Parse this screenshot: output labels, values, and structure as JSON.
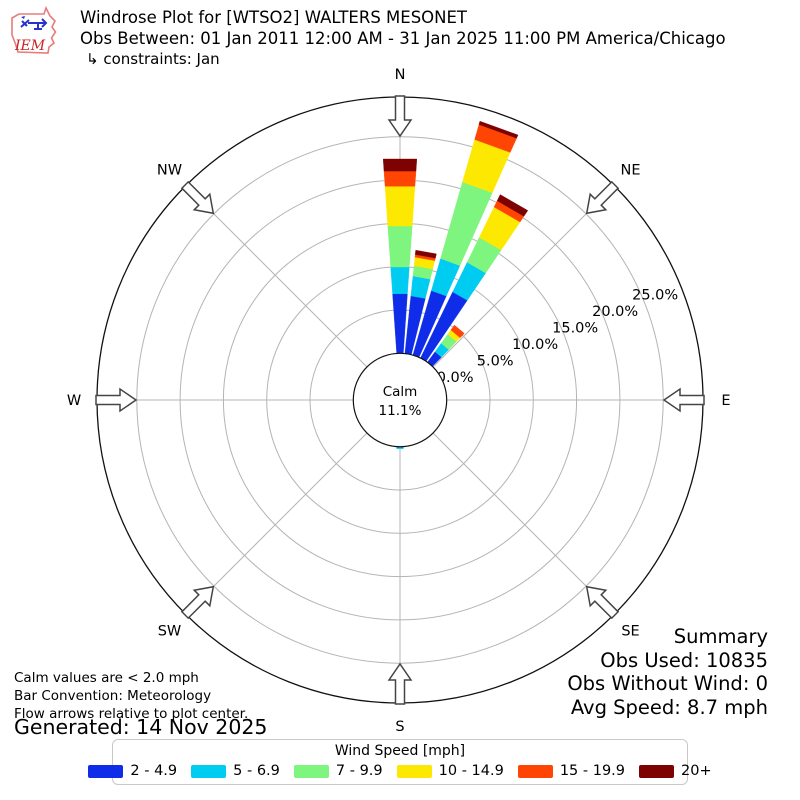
{
  "header": {
    "logo_text": "IEM",
    "title": "Windrose Plot for [WTSO2] WALTERS MESONET",
    "subtitle": "Obs Between: 01 Jan 2011 12:00 AM - 31 Jan 2025 11:00 PM America/Chicago",
    "constraints": "↳ constraints: Jan"
  },
  "notes": {
    "lines": [
      "Calm values are < 2.0 mph",
      "Bar Convention: Meteorology",
      "Flow arrows relative to plot center."
    ],
    "generated": "Generated: 14 Nov 2025"
  },
  "summary": {
    "title": "Summary",
    "obs_used": "Obs Used: 10835",
    "obs_without_wind": "Obs Without Wind: 0",
    "avg_speed": "Avg Speed: 8.7 mph"
  },
  "legend": {
    "title": "Wind Speed [mph]"
  },
  "chart_data": {
    "type": "windrose",
    "units": "mph",
    "sector_width_deg": 10,
    "petal_opening_deg": 8,
    "rings_pct": [
      0,
      5,
      10,
      15,
      20,
      25
    ],
    "ring_labels": [
      "0.0%",
      "5.0%",
      "10.0%",
      "15.0%",
      "20.0%",
      "25.0%"
    ],
    "ring_label_azimuth_deg": 67.5,
    "rmax_pct": 29.6,
    "grid_color": "#b4b4b4",
    "calm": {
      "label": "Calm",
      "value_label": "11.1%",
      "pct": 11.1
    },
    "compass_labels": [
      "N",
      "NE",
      "E",
      "SE",
      "S",
      "SW",
      "W",
      "NW"
    ],
    "speed_bins": [
      {
        "label": "2 - 4.9",
        "color": "#0f2de8"
      },
      {
        "label": "5 - 6.9",
        "color": "#00ccf2"
      },
      {
        "label": "7 - 9.9",
        "color": "#7ef57e"
      },
      {
        "label": "10 - 14.9",
        "color": "#fde801"
      },
      {
        "label": "15 - 19.9",
        "color": "#ff4503"
      },
      {
        "label": "20+",
        "color": "#7c0301"
      }
    ],
    "petals": [
      {
        "dir_deg": 0,
        "values_pct": [
          6.9,
          3.1,
          4.75,
          4.6,
          1.75,
          1.4
        ]
      },
      {
        "dir_deg": 10,
        "values_pct": [
          6.7,
          2.3,
          1.2,
          1.0,
          0.3,
          0.5
        ]
      },
      {
        "dir_deg": 20,
        "values_pct": [
          7.75,
          3.85,
          9.2,
          5.1,
          1.8,
          0.4
        ]
      },
      {
        "dir_deg": 30,
        "values_pct": [
          8.5,
          3.8,
          3.2,
          3.9,
          0.8,
          0.8
        ]
      },
      {
        "dir_deg": 40,
        "values_pct": [
          1.5,
          1.2,
          1.3,
          0.6,
          0.7,
          0.0
        ]
      },
      {
        "dir_deg": 180,
        "values_pct": [
          0.12,
          0.12,
          0,
          0,
          0,
          0
        ]
      }
    ]
  }
}
